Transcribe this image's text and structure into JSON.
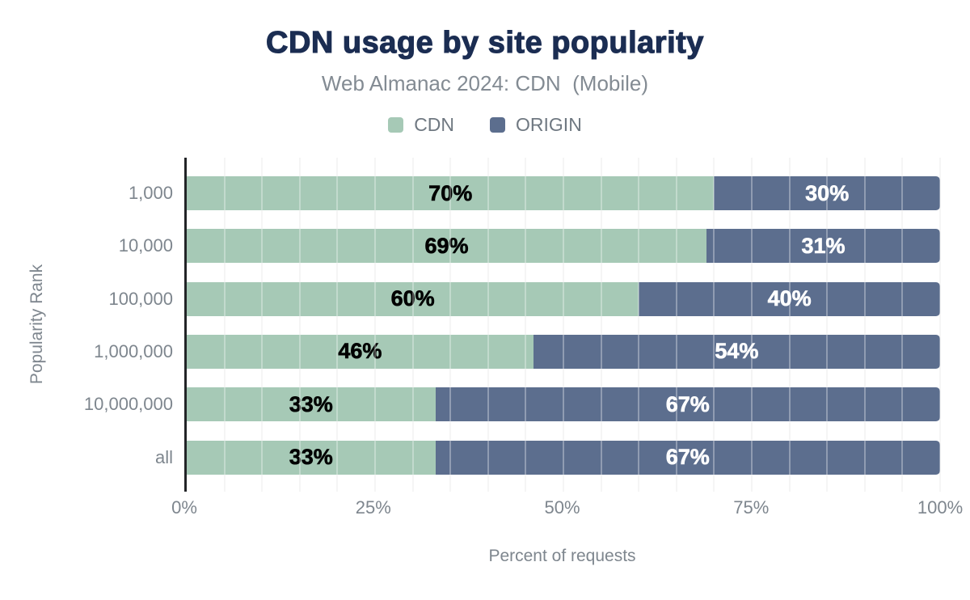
{
  "chart_data": {
    "type": "bar",
    "orientation": "horizontal",
    "stacked": true,
    "title": "CDN usage by site popularity",
    "subtitle": "Web Almanac 2024: CDN  (Mobile)",
    "categories": [
      "1,000",
      "10,000",
      "100,000",
      "1,000,000",
      "10,000,000",
      "all"
    ],
    "series": [
      {
        "name": "CDN",
        "color": "#a6c9b6",
        "label_color": "#000000",
        "values": [
          70,
          69,
          60,
          46,
          33,
          33
        ]
      },
      {
        "name": "ORIGIN",
        "color": "#5c6e8e",
        "label_color": "#ffffff",
        "values": [
          30,
          31,
          40,
          54,
          67,
          67
        ]
      }
    ],
    "value_suffix": "%",
    "xlabel": "Percent of requests",
    "ylabel": "Popularity Rank",
    "xlim": [
      0,
      100
    ],
    "x_ticks": [
      {
        "value": 0,
        "label": "0%"
      },
      {
        "value": 25,
        "label": "25%"
      },
      {
        "value": 50,
        "label": "50%"
      },
      {
        "value": 75,
        "label": "75%"
      },
      {
        "value": 100,
        "label": "100%"
      }
    ],
    "grid": {
      "orientation": "vertical",
      "minor_step": 5
    },
    "legend_position": "top"
  },
  "colors": {
    "title_text": "#1b2d52",
    "muted_text": "#7e868e",
    "legend_text": "#6f7881",
    "axis_line": "#222427",
    "gridline": "#f0f0f1",
    "background": "#ffffff"
  }
}
